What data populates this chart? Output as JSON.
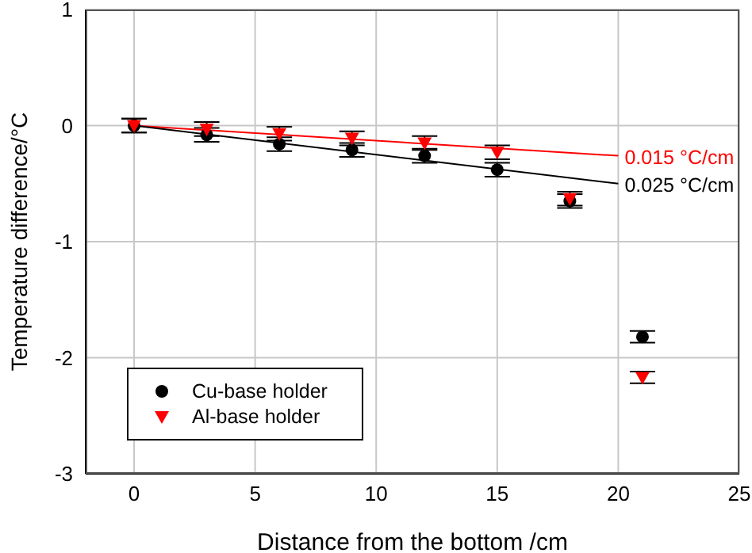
{
  "chart_data": {
    "type": "scatter",
    "xlabel": "Distance from the bottom /cm",
    "ylabel": "Temperature difference/°C",
    "xlim": [
      -2,
      25
    ],
    "xticks": [
      0,
      5,
      10,
      15,
      20,
      25
    ],
    "ylim": [
      -3,
      1
    ],
    "yticks": [
      -3,
      -2,
      -1,
      0,
      1
    ],
    "grid": true,
    "legend": "bottom left",
    "series": [
      {
        "name": "Cu-base holder",
        "marker": "circle",
        "color": "#000000",
        "x": [
          0,
          3,
          6,
          9,
          12,
          15,
          18,
          21
        ],
        "values": [
          0,
          -0.08,
          -0.16,
          -0.21,
          -0.26,
          -0.38,
          -0.65,
          -1.82
        ],
        "errors": [
          0.06,
          0.06,
          0.06,
          0.06,
          0.06,
          0.06,
          0.06,
          0.05
        ]
      },
      {
        "name": "Al-base holder",
        "marker": "triangle",
        "color": "#ff0000",
        "x": [
          0,
          3,
          6,
          9,
          12,
          15,
          18,
          21
        ],
        "values": [
          0,
          -0.03,
          -0.07,
          -0.11,
          -0.15,
          -0.23,
          -0.63,
          -2.17
        ],
        "errors": [
          0.06,
          0.06,
          0.06,
          0.06,
          0.06,
          0.06,
          0.06,
          0.05
        ]
      },
      {
        "name": "0.015 °C/cm",
        "type": "line",
        "marker": "none",
        "color": "#ff0000",
        "x": [
          0,
          20
        ],
        "values": [
          0,
          -0.26
        ]
      },
      {
        "name": "0.025 °C/cm",
        "type": "line",
        "marker": "none",
        "color": "#000000",
        "x": [
          0,
          20
        ],
        "values": [
          0,
          -0.5
        ]
      }
    ]
  }
}
